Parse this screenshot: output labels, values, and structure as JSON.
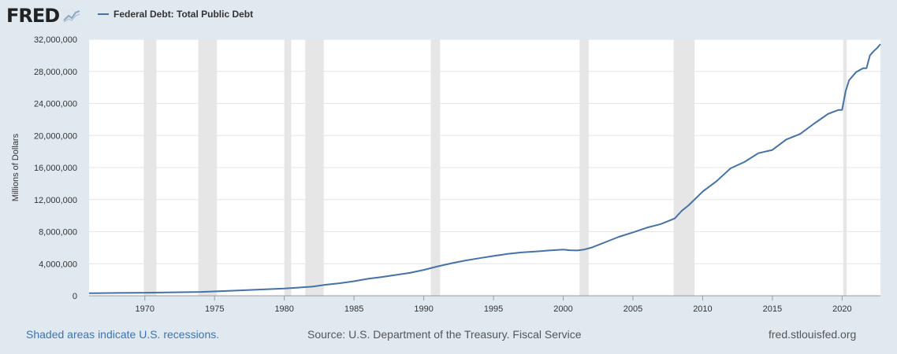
{
  "brand": {
    "name": "FRED",
    "icon": "fred-graph-icon"
  },
  "legend": {
    "label": "Federal Debt: Total Public Debt",
    "color": "#4572a7"
  },
  "footer": {
    "note": "Shaded areas indicate U.S. recessions.",
    "source": "Source: U.S. Department of the Treasury. Fiscal Service",
    "site": "fred.stlouisfed.org"
  },
  "chart_data": {
    "type": "line",
    "ylabel": "Millions of Dollars",
    "xlim": [
      1966.0,
      2022.75
    ],
    "ylim": [
      0,
      32000000
    ],
    "yticks": [
      0,
      4000000,
      8000000,
      12000000,
      16000000,
      20000000,
      24000000,
      28000000,
      32000000
    ],
    "ytick_labels": [
      "0",
      "4,000,000",
      "8,000,000",
      "12,000,000",
      "16,000,000",
      "20,000,000",
      "24,000,000",
      "28,000,000",
      "32,000,000"
    ],
    "xticks": [
      1970,
      1975,
      1980,
      1985,
      1990,
      1995,
      2000,
      2005,
      2010,
      2015,
      2020
    ],
    "xtick_labels": [
      "1970",
      "1975",
      "1980",
      "1985",
      "1990",
      "1995",
      "2000",
      "2005",
      "2010",
      "2015",
      "2020"
    ],
    "grid": true,
    "line_color": "#4572a7",
    "recessions": [
      [
        1969.92,
        1970.83
      ],
      [
        1973.83,
        1975.17
      ],
      [
        1980.0,
        1980.5
      ],
      [
        1981.5,
        1982.83
      ],
      [
        1990.5,
        1991.17
      ],
      [
        2001.17,
        2001.83
      ],
      [
        2007.92,
        2009.42
      ],
      [
        2020.08,
        2020.33
      ]
    ],
    "series": [
      {
        "name": "Federal Debt: Total Public Debt",
        "x": [
          1966,
          1968,
          1970,
          1972,
          1974,
          1976,
          1978,
          1980,
          1982,
          1983,
          1984,
          1985,
          1986,
          1987,
          1988,
          1989,
          1990,
          1991,
          1992,
          1993,
          1994,
          1995,
          1996,
          1997,
          1998,
          1999,
          2000,
          2000.5,
          2001,
          2001.5,
          2002,
          2003,
          2004,
          2005,
          2006,
          2007,
          2008,
          2008.5,
          2009,
          2010,
          2011,
          2012,
          2013,
          2014,
          2015,
          2016,
          2017,
          2018,
          2019,
          2019.75,
          2020,
          2020.25,
          2020.5,
          2021,
          2021.5,
          2021.75,
          2022,
          2022.25,
          2022.5,
          2022.75
        ],
        "y": [
          320000,
          350000,
          380000,
          430000,
          480000,
          620000,
          770000,
          900000,
          1140000,
          1380000,
          1570000,
          1820000,
          2120000,
          2350000,
          2600000,
          2860000,
          3230000,
          3670000,
          4060000,
          4410000,
          4690000,
          4970000,
          5220000,
          5410000,
          5530000,
          5650000,
          5760000,
          5680000,
          5650000,
          5770000,
          6000000,
          6670000,
          7360000,
          7910000,
          8500000,
          8950000,
          9650000,
          10600000,
          11300000,
          13000000,
          14300000,
          15900000,
          16700000,
          17800000,
          18200000,
          19500000,
          20200000,
          21500000,
          22700000,
          23200000,
          23200000,
          25500000,
          26900000,
          27900000,
          28400000,
          28400000,
          30000000,
          30500000,
          30900000,
          31400000
        ]
      }
    ]
  }
}
